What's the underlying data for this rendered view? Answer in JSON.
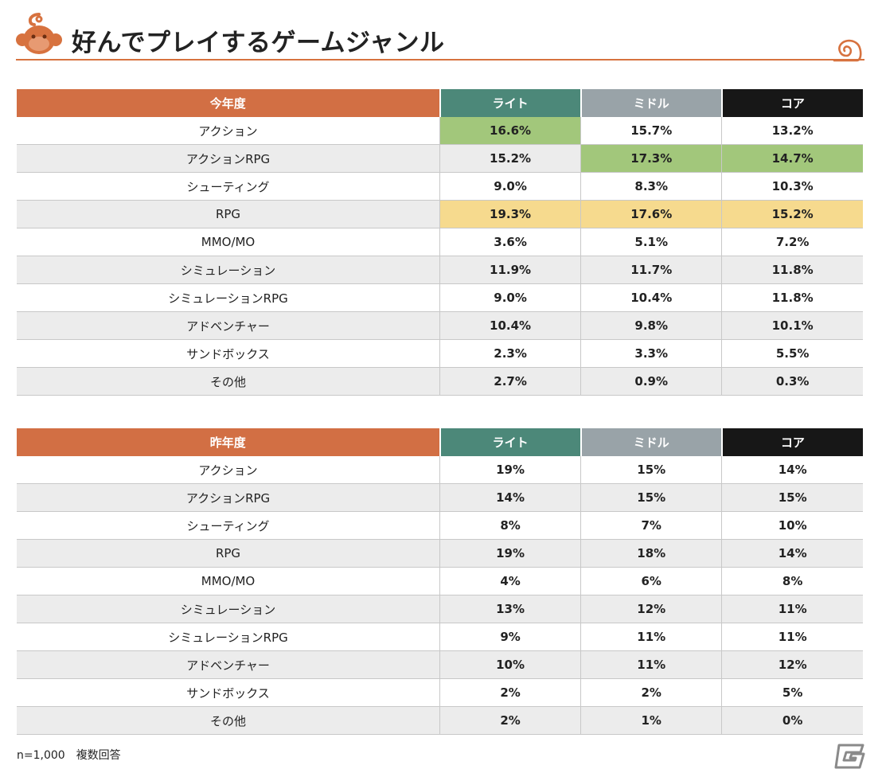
{
  "page": {
    "title": "好んでプレイするゲームジャンル",
    "footnote_sample": "n=1,000",
    "footnote_note": "複数回答",
    "colors": {
      "accent_orange": "#d26f44",
      "light_teal": "#4c8879",
      "middle_gray": "#99a3a8",
      "core_black": "#171717",
      "highlight_green": "#a2c77b",
      "highlight_yellow": "#f6da8e"
    },
    "icons": [
      "monkey-face-logo-icon",
      "swirl-decoration-icon",
      "site-g-logo-icon"
    ]
  },
  "this_year": {
    "header": {
      "label": "今年度",
      "light": "ライト",
      "middle": "ミドル",
      "core": "コア"
    },
    "rows": [
      {
        "genre": "アクション",
        "light": "16.6%",
        "middle": "15.7%",
        "core": "13.2%",
        "hl": [
          "green",
          "",
          ""
        ]
      },
      {
        "genre": "アクションRPG",
        "light": "15.2%",
        "middle": "17.3%",
        "core": "14.7%",
        "hl": [
          "",
          "green",
          "green"
        ]
      },
      {
        "genre": "シューティング",
        "light": "9.0%",
        "middle": "8.3%",
        "core": "10.3%",
        "hl": [
          "",
          "",
          ""
        ]
      },
      {
        "genre": "RPG",
        "light": "19.3%",
        "middle": "17.6%",
        "core": "15.2%",
        "hl": [
          "yellow",
          "yellow",
          "yellow"
        ]
      },
      {
        "genre": "MMO/MO",
        "light": "3.6%",
        "middle": "5.1%",
        "core": "7.2%",
        "hl": [
          "",
          "",
          ""
        ]
      },
      {
        "genre": "シミュレーション",
        "light": "11.9%",
        "middle": "11.7%",
        "core": "11.8%",
        "hl": [
          "",
          "",
          ""
        ]
      },
      {
        "genre": "シミュレーションRPG",
        "light": "9.0%",
        "middle": "10.4%",
        "core": "11.8%",
        "hl": [
          "",
          "",
          ""
        ]
      },
      {
        "genre": "アドベンチャー",
        "light": "10.4%",
        "middle": "9.8%",
        "core": "10.1%",
        "hl": [
          "",
          "",
          ""
        ]
      },
      {
        "genre": "サンドボックス",
        "light": "2.3%",
        "middle": "3.3%",
        "core": "5.5%",
        "hl": [
          "",
          "",
          ""
        ]
      },
      {
        "genre": "その他",
        "light": "2.7%",
        "middle": "0.9%",
        "core": "0.3%",
        "hl": [
          "",
          "",
          ""
        ]
      }
    ]
  },
  "last_year": {
    "header": {
      "label": "昨年度",
      "light": "ライト",
      "middle": "ミドル",
      "core": "コア"
    },
    "rows": [
      {
        "genre": "アクション",
        "light": "19%",
        "middle": "15%",
        "core": "14%",
        "hl": [
          "",
          "",
          ""
        ]
      },
      {
        "genre": "アクションRPG",
        "light": "14%",
        "middle": "15%",
        "core": "15%",
        "hl": [
          "",
          "",
          ""
        ]
      },
      {
        "genre": "シューティング",
        "light": "8%",
        "middle": "7%",
        "core": "10%",
        "hl": [
          "",
          "",
          ""
        ]
      },
      {
        "genre": "RPG",
        "light": "19%",
        "middle": "18%",
        "core": "14%",
        "hl": [
          "",
          "",
          ""
        ]
      },
      {
        "genre": "MMO/MO",
        "light": "4%",
        "middle": "6%",
        "core": "8%",
        "hl": [
          "",
          "",
          ""
        ]
      },
      {
        "genre": "シミュレーション",
        "light": "13%",
        "middle": "12%",
        "core": "11%",
        "hl": [
          "",
          "",
          ""
        ]
      },
      {
        "genre": "シミュレーションRPG",
        "light": "9%",
        "middle": "11%",
        "core": "11%",
        "hl": [
          "",
          "",
          ""
        ]
      },
      {
        "genre": "アドベンチャー",
        "light": "10%",
        "middle": "11%",
        "core": "12%",
        "hl": [
          "",
          "",
          ""
        ]
      },
      {
        "genre": "サンドボックス",
        "light": "2%",
        "middle": "2%",
        "core": "5%",
        "hl": [
          "",
          "",
          ""
        ]
      },
      {
        "genre": "その他",
        "light": "2%",
        "middle": "1%",
        "core": "0%",
        "hl": [
          "",
          "",
          ""
        ]
      }
    ]
  }
}
